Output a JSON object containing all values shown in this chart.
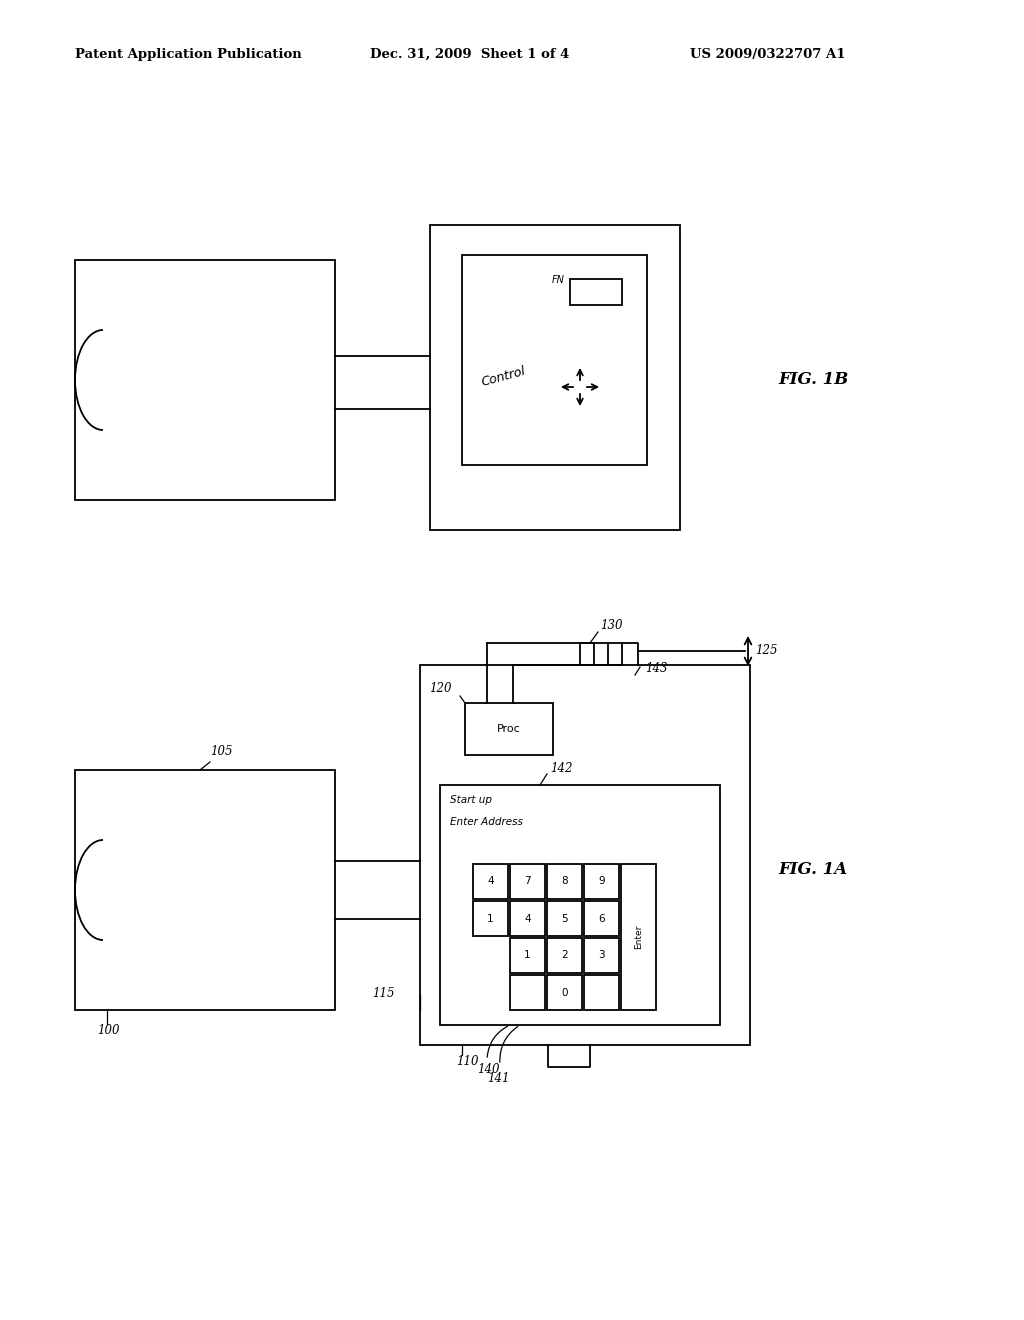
{
  "bg_color": "#ffffff",
  "header_text1": "Patent Application Publication",
  "header_text2": "Dec. 31, 2009  Sheet 1 of 4",
  "header_text3": "US 2009/0322707 A1",
  "fig1b_label": "FIG. 1B",
  "fig1a_label": "FIG. 1A"
}
